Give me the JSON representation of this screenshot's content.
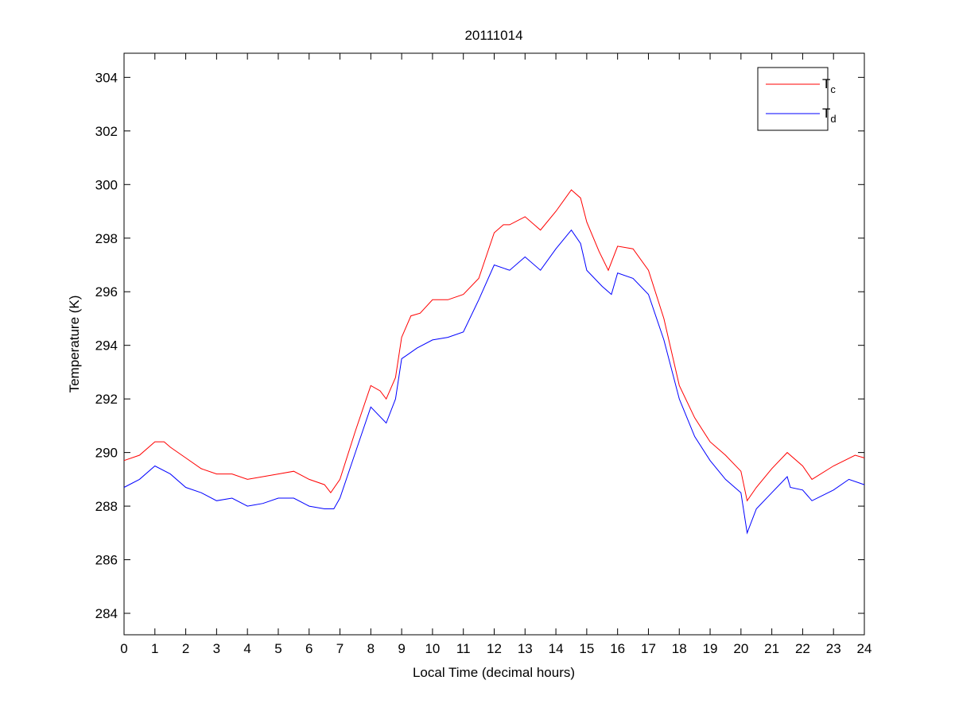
{
  "chart_data": {
    "type": "line",
    "title": "20111014",
    "xlabel": "Local Time (decimal hours)",
    "ylabel": "Temperature (K)",
    "xlim": [
      0,
      24
    ],
    "ylim": [
      283.2,
      304.9
    ],
    "xticks": [
      0,
      1,
      2,
      3,
      4,
      5,
      6,
      7,
      8,
      9,
      10,
      11,
      12,
      13,
      14,
      15,
      16,
      17,
      18,
      19,
      20,
      21,
      22,
      23,
      24
    ],
    "yticks": [
      284,
      286,
      288,
      290,
      292,
      294,
      296,
      298,
      300,
      302,
      304
    ],
    "grid": false,
    "legend_position": "top-right",
    "series": [
      {
        "name": "Tc",
        "legend_main": "T",
        "legend_sub": "c",
        "color": "#ff0000",
        "x": [
          0,
          0.5,
          1,
          1.3,
          1.5,
          2,
          2.5,
          3,
          3.5,
          4,
          4.5,
          5,
          5.5,
          6,
          6.5,
          6.7,
          7,
          7.5,
          8,
          8.3,
          8.5,
          8.8,
          9,
          9.3,
          9.6,
          10,
          10.5,
          11,
          11.5,
          12,
          12.3,
          12.5,
          13,
          13.5,
          14,
          14.5,
          14.8,
          15,
          15.4,
          15.7,
          16,
          16.5,
          17,
          17.5,
          18,
          18.5,
          19,
          19.5,
          20,
          20.2,
          20.5,
          21,
          21.5,
          22,
          22.3,
          23,
          23.7,
          24
        ],
        "y": [
          289.7,
          289.9,
          290.4,
          290.4,
          290.2,
          289.8,
          289.4,
          289.2,
          289.2,
          289.0,
          289.1,
          289.2,
          289.3,
          289.0,
          288.8,
          288.5,
          289.0,
          290.8,
          292.5,
          292.3,
          292.0,
          292.8,
          294.3,
          295.1,
          295.2,
          295.7,
          295.7,
          295.9,
          296.5,
          298.2,
          298.5,
          298.5,
          298.8,
          298.3,
          299.0,
          299.8,
          299.5,
          298.6,
          297.5,
          296.8,
          297.7,
          297.6,
          296.8,
          295.0,
          292.5,
          291.3,
          290.4,
          289.9,
          289.3,
          288.2,
          288.7,
          289.4,
          290.0,
          289.5,
          289.0,
          289.5,
          289.9,
          289.8
        ]
      },
      {
        "name": "Td",
        "legend_main": "T",
        "legend_sub": "d",
        "color": "#0000ff",
        "x": [
          0,
          0.5,
          1,
          1.5,
          2,
          2.5,
          3,
          3.5,
          4,
          4.5,
          5,
          5.5,
          6,
          6.5,
          6.8,
          7,
          7.5,
          8,
          8.5,
          8.8,
          9,
          9.5,
          10,
          10.5,
          11,
          11.5,
          12,
          12.5,
          13,
          13.5,
          14,
          14.5,
          14.8,
          15,
          15.5,
          15.8,
          16,
          16.5,
          17,
          17.5,
          18,
          18.5,
          19,
          19.5,
          20,
          20.2,
          20.5,
          21,
          21.5,
          21.6,
          22,
          22.3,
          23,
          23.5,
          24
        ],
        "y": [
          288.7,
          289.0,
          289.5,
          289.2,
          288.7,
          288.5,
          288.2,
          288.3,
          288.0,
          288.1,
          288.3,
          288.3,
          288.0,
          287.9,
          287.9,
          288.3,
          290.0,
          291.7,
          291.1,
          292.0,
          293.5,
          293.9,
          294.2,
          294.3,
          294.5,
          295.7,
          297.0,
          296.8,
          297.3,
          296.8,
          297.6,
          298.3,
          297.8,
          296.8,
          296.2,
          295.9,
          296.7,
          296.5,
          295.9,
          294.2,
          292.0,
          290.6,
          289.7,
          289.0,
          288.5,
          287.0,
          287.9,
          288.5,
          289.1,
          288.7,
          288.6,
          288.2,
          288.6,
          289.0,
          288.8
        ]
      }
    ]
  }
}
